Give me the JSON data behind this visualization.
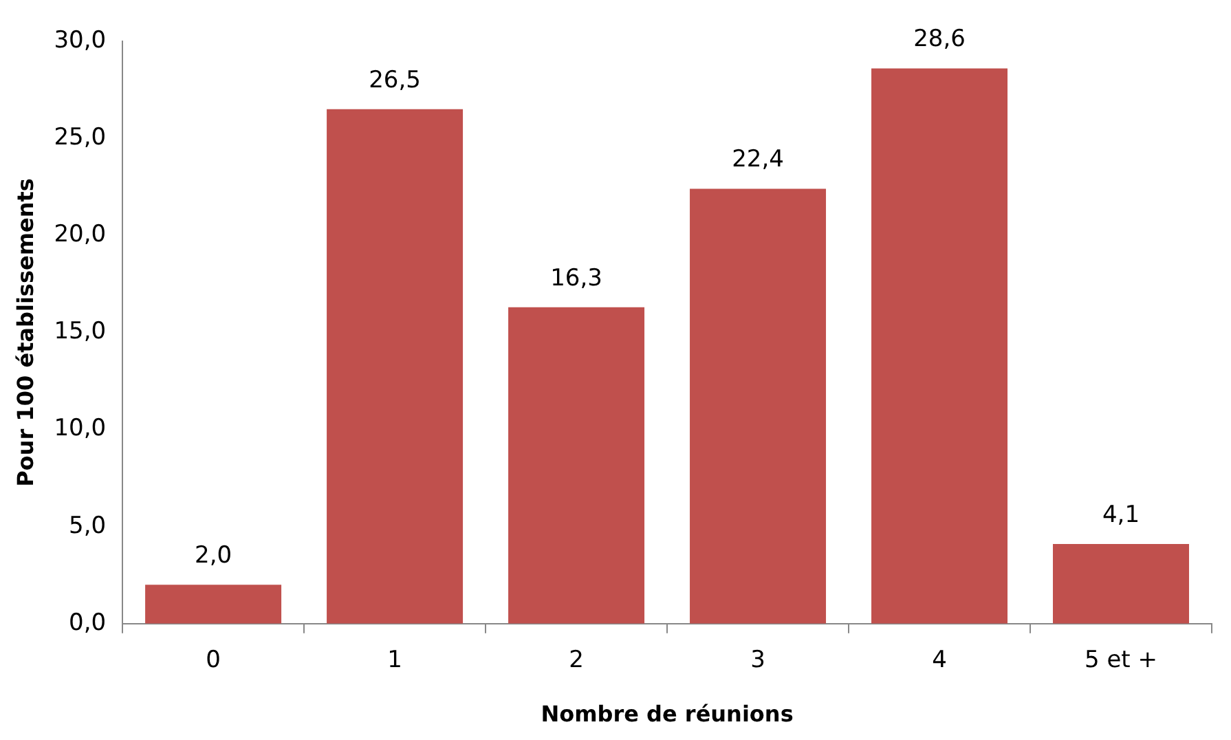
{
  "chart_data": {
    "type": "bar",
    "xlabel": "Nombre de réunions",
    "ylabel": "Pour 100 établissements",
    "categories": [
      "0",
      "1",
      "2",
      "3",
      "4",
      "5 et +"
    ],
    "values": [
      2.0,
      26.5,
      16.3,
      22.4,
      28.6,
      4.1
    ],
    "value_labels": [
      "2,0",
      "26,5",
      "16,3",
      "22,4",
      "28,6",
      "4,1"
    ],
    "color": "#c0504d",
    "ylim": [
      0,
      30
    ],
    "yticks": [
      {
        "value": 0,
        "label": "0,0"
      },
      {
        "value": 5,
        "label": "5,0"
      },
      {
        "value": 10,
        "label": "10,0"
      },
      {
        "value": 15,
        "label": "15,0"
      },
      {
        "value": 20,
        "label": "20,0"
      },
      {
        "value": 25,
        "label": "25,0"
      },
      {
        "value": 30,
        "label": "30,0"
      }
    ],
    "grid": false,
    "legend": false
  }
}
